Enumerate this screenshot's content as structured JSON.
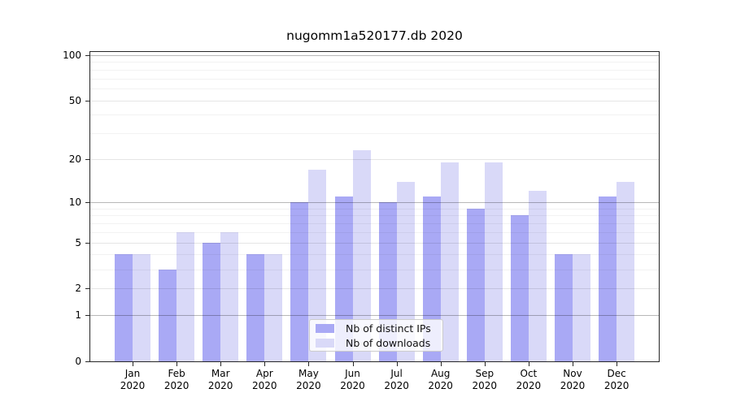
{
  "chart_data": {
    "type": "bar",
    "title": "nugomm1a520177.db 2020",
    "categories": [
      "Jan",
      "Feb",
      "Mar",
      "Apr",
      "May",
      "Jun",
      "Jul",
      "Aug",
      "Sep",
      "Oct",
      "Nov",
      "Dec"
    ],
    "x_tick_second_line": "2020",
    "series": [
      {
        "name": "Nb of distinct IPs",
        "color": "#a9a9f5",
        "values": [
          4,
          3,
          5,
          4,
          10,
          11,
          10,
          11,
          9,
          8,
          4,
          11
        ]
      },
      {
        "name": "Nb of downloads",
        "color": "#d9d9f8",
        "values": [
          4,
          6,
          6,
          4,
          17,
          23,
          14,
          19,
          19,
          12,
          4,
          14
        ]
      }
    ],
    "xlabel": "",
    "ylabel": "",
    "yscale": "log1p",
    "yticks": [
      100,
      50,
      20,
      10,
      5,
      2,
      1,
      0
    ],
    "ylim": [
      0,
      106
    ],
    "grid": true,
    "legend_position": "lower center"
  },
  "colors": {
    "grid_major": "rgba(0,0,0,0.28)",
    "grid_medium": "rgba(0,0,0,0.10)",
    "grid_minor": "rgba(0,0,0,0.05)",
    "spine": "#262626",
    "text": "#000000"
  },
  "grid_minor_values": [
    3,
    4,
    6,
    7,
    8,
    9,
    30,
    40,
    60,
    70,
    80,
    90
  ],
  "grid_medium_values": [
    2,
    5,
    20,
    50
  ],
  "grid_major_values": [
    1,
    10,
    100
  ]
}
